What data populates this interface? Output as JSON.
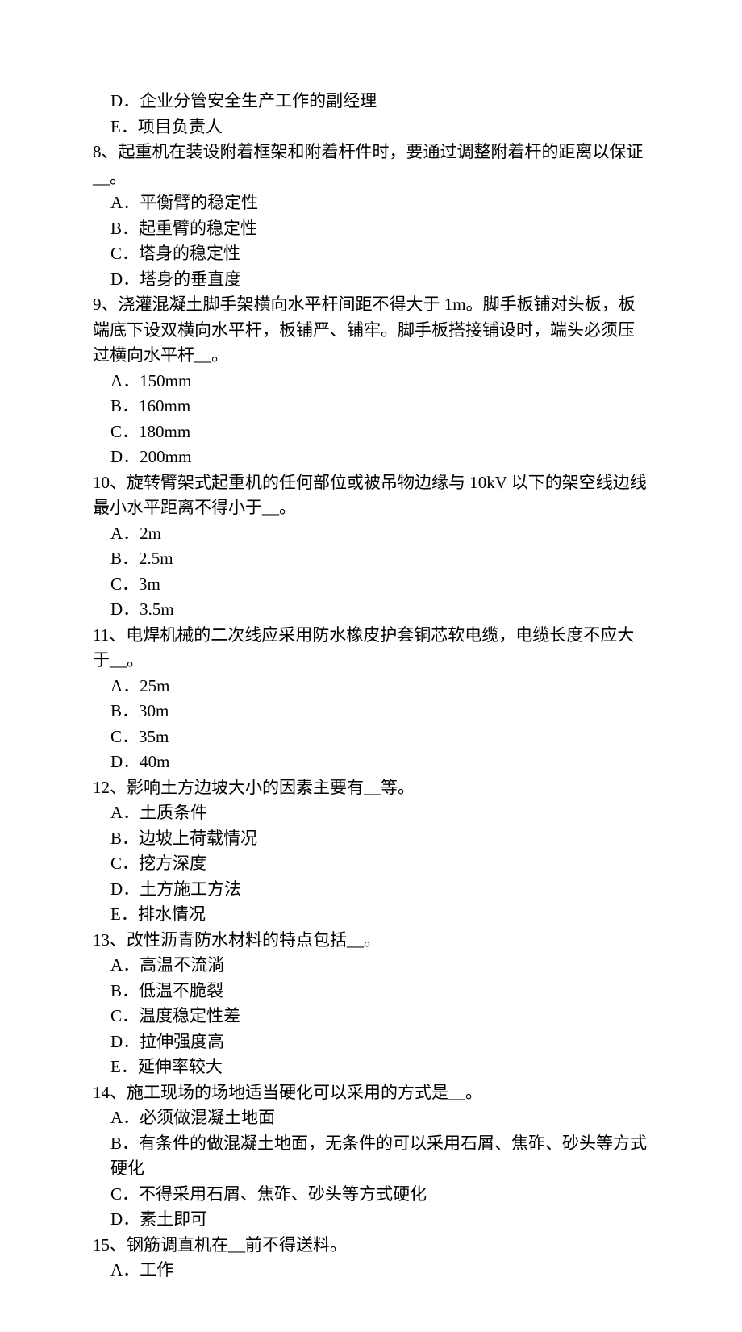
{
  "lines": [
    {
      "cls": "opt",
      "text": "D．企业分管安全生产工作的副经理"
    },
    {
      "cls": "opt",
      "text": "E．项目负责人"
    },
    {
      "cls": "q",
      "text": "8、起重机在装设附着框架和附着杆件时，要通过调整附着杆的距离以保证__。"
    },
    {
      "cls": "opt",
      "text": "A．平衡臂的稳定性"
    },
    {
      "cls": "opt",
      "text": "B．起重臂的稳定性"
    },
    {
      "cls": "opt",
      "text": "C．塔身的稳定性"
    },
    {
      "cls": "opt",
      "text": "D．塔身的垂直度"
    },
    {
      "cls": "q",
      "text": "9、浇灌混凝土脚手架横向水平杆间距不得大于 1m。脚手板铺对头板，板端底下设双横向水平杆，板铺严、铺牢。脚手板搭接铺设时，端头必须压过横向水平杆__。"
    },
    {
      "cls": "opt",
      "text": "A．150mm"
    },
    {
      "cls": "opt",
      "text": "B．160mm"
    },
    {
      "cls": "opt",
      "text": "C．180mm"
    },
    {
      "cls": "opt",
      "text": "D．200mm"
    },
    {
      "cls": "q",
      "text": "10、旋转臂架式起重机的任何部位或被吊物边缘与 10kV 以下的架空线边线最小水平距离不得小于__。"
    },
    {
      "cls": "opt",
      "text": "A．2m"
    },
    {
      "cls": "opt",
      "text": "B．2.5m"
    },
    {
      "cls": "opt",
      "text": "C．3m"
    },
    {
      "cls": "opt",
      "text": "D．3.5m"
    },
    {
      "cls": "q",
      "text": "11、电焊机械的二次线应采用防水橡皮护套铜芯软电缆，电缆长度不应大于__。"
    },
    {
      "cls": "opt",
      "text": "A．25m"
    },
    {
      "cls": "opt",
      "text": "B．30m"
    },
    {
      "cls": "opt",
      "text": "C．35m"
    },
    {
      "cls": "opt",
      "text": "D．40m"
    },
    {
      "cls": "q",
      "text": "12、影响土方边坡大小的因素主要有__等。"
    },
    {
      "cls": "opt",
      "text": "A．土质条件"
    },
    {
      "cls": "opt",
      "text": "B．边坡上荷载情况"
    },
    {
      "cls": "opt",
      "text": "C．挖方深度"
    },
    {
      "cls": "opt",
      "text": "D．土方施工方法"
    },
    {
      "cls": "opt",
      "text": "E．排水情况"
    },
    {
      "cls": "q",
      "text": "13、改性沥青防水材料的特点包括__。"
    },
    {
      "cls": "opt",
      "text": "A．高温不流淌"
    },
    {
      "cls": "opt",
      "text": "B．低温不脆裂"
    },
    {
      "cls": "opt",
      "text": "C．温度稳定性差"
    },
    {
      "cls": "opt",
      "text": "D．拉伸强度高"
    },
    {
      "cls": "opt",
      "text": "E．延伸率较大"
    },
    {
      "cls": "q",
      "text": "14、施工现场的场地适当硬化可以采用的方式是__。"
    },
    {
      "cls": "opt",
      "text": "A．必须做混凝土地面"
    },
    {
      "cls": "opt",
      "text": "B．有条件的做混凝土地面，无条件的可以采用石屑、焦砟、砂头等方式硬化"
    },
    {
      "cls": "opt",
      "text": "C．不得采用石屑、焦砟、砂头等方式硬化"
    },
    {
      "cls": "opt",
      "text": "D．素土即可"
    },
    {
      "cls": "q",
      "text": "15、钢筋调直机在__前不得送料。"
    },
    {
      "cls": "opt",
      "text": "A．工作"
    }
  ]
}
